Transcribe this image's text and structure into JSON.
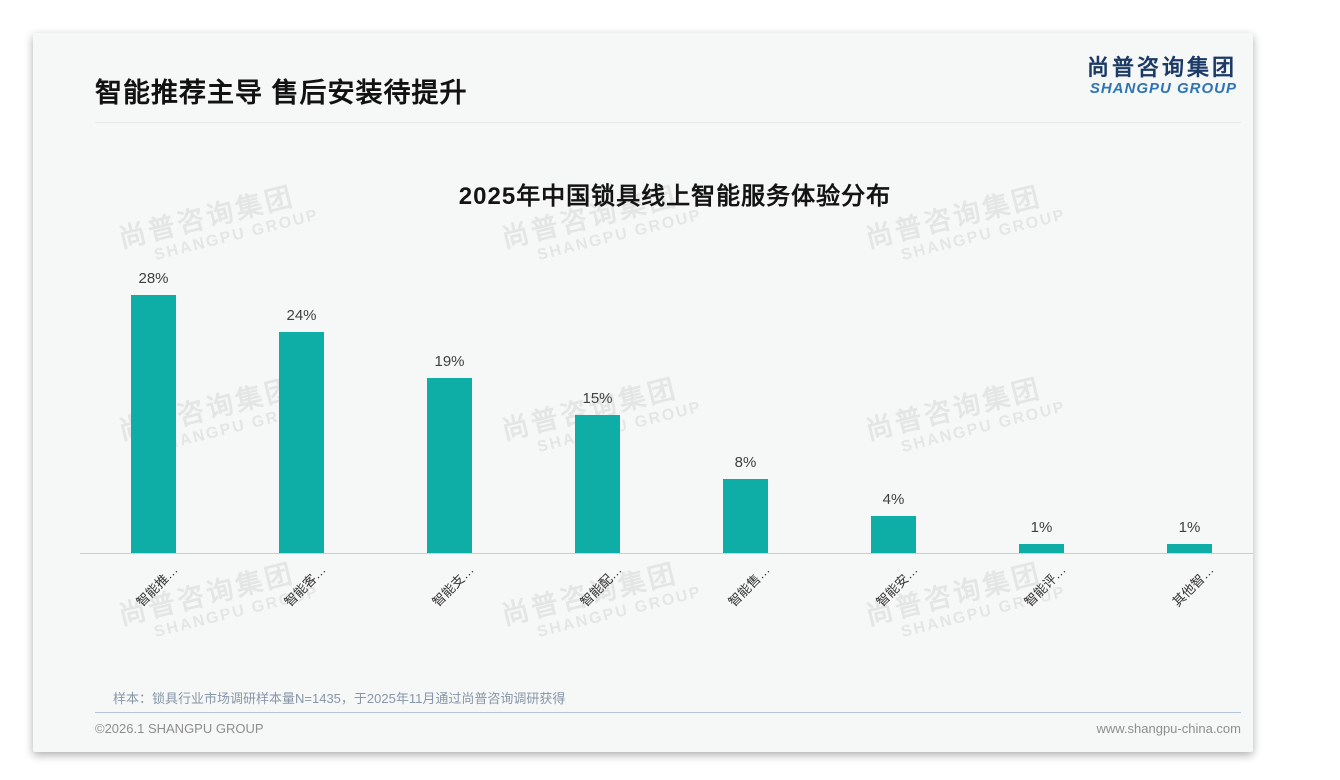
{
  "page": {
    "title": "智能推荐主导 售后安装待提升"
  },
  "logo": {
    "cn": "尚普咨询集团",
    "en": "SHANGPU GROUP"
  },
  "watermark": {
    "cn": "尚普咨询集团",
    "en": "SHANGPU GROUP"
  },
  "chart_data": {
    "type": "bar",
    "title": "2025年中国锁具线上智能服务体验分布",
    "categories": [
      "智能推…",
      "智能客…",
      "智能支…",
      "智能配…",
      "智能售…",
      "智能安…",
      "智能评…",
      "其他智…"
    ],
    "values": [
      28,
      24,
      19,
      15,
      8,
      4,
      1,
      1
    ],
    "value_labels": [
      "28%",
      "24%",
      "19%",
      "15%",
      "8%",
      "4%",
      "1%",
      "1%"
    ],
    "bar_color": "#0eaea6",
    "xlabel": "",
    "ylabel": "",
    "ylim": [
      0,
      30
    ],
    "grid": false,
    "legend": "none",
    "value_labels_shown": true,
    "x_labels_rotation_deg": -45
  },
  "note": {
    "text": "样本：锁具行业市场调研样本量N=1435，于2025年11月通过尚普咨询调研获得"
  },
  "footer": {
    "left": "©2026.1 SHANGPU GROUP",
    "right": "www.shangpu-china.com"
  },
  "colors": {
    "bar_teal": "#0eaea6",
    "logo_navy": "#1b3a66",
    "logo_blue": "#2e74b5",
    "card_background": "#f6f7f7",
    "note_gray_blue": "#8796a8",
    "footer_divider_blue": "#b4c5d6"
  }
}
